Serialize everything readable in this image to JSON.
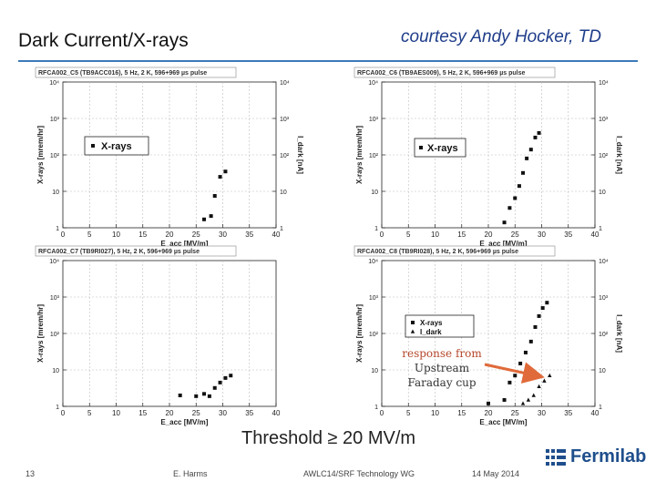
{
  "slide": {
    "title": "Dark Current/X-rays",
    "credit": "courtesy Andy Hocker, TD",
    "threshold": "Threshold ≥ 20 MV/m",
    "callout": [
      "response from",
      "Upstream",
      "Faraday cup"
    ],
    "footer": {
      "page": "13",
      "author": "E. Harms",
      "event": "AWLC14/SRF Technology WG",
      "date": "14 May 2014"
    },
    "logo": "Fermilab"
  },
  "colors": {
    "accent_rule": "#3d7ab8",
    "callout_text": "#b5472a",
    "arrow": "#e06a3a",
    "logo": "#1f4e8c"
  },
  "chart_data": [
    {
      "type": "scatter",
      "title": "RFCA002_C5 (TB9ACC016), 5 Hz, 2 K, 596+969 µs pulse",
      "xlabel": "E_acc [MV/m]",
      "ylabel": "X-rays [mrem/hr]",
      "y2label": "I_dark [nA]",
      "xlim": [
        0,
        40
      ],
      "xticks": [
        "0",
        "5",
        "10",
        "15",
        "20",
        "25",
        "30",
        "35",
        "40"
      ],
      "ylim": [
        1,
        10000
      ],
      "yscale": "log",
      "yticks": [
        "1",
        "10",
        "10²",
        "10³",
        "10⁴"
      ],
      "y2ticks": [
        "1",
        "10",
        "10²",
        "10³",
        "10⁴"
      ],
      "legend": "center-left",
      "series": [
        {
          "name": "X-rays",
          "marker": "square",
          "x": [
            26.5,
            27.8,
            28.5,
            29.5,
            30.5
          ],
          "y": [
            1.7,
            2.1,
            7.5,
            25,
            35
          ]
        }
      ]
    },
    {
      "type": "scatter",
      "title": "RFCA002_C6 (TB9AES009), 5 Hz, 2 K, 596+969 µs pulse",
      "xlabel": "E_acc [MV/m]",
      "ylabel": "X-rays [mrem/hr]",
      "y2label": "I_dark [nA]",
      "xlim": [
        0,
        40
      ],
      "xticks": [
        "0",
        "5",
        "10",
        "15",
        "20",
        "25",
        "30",
        "35",
        "40"
      ],
      "ylim": [
        1,
        10000
      ],
      "yscale": "log",
      "yticks": [
        "1",
        "10",
        "10²",
        "10³",
        "10⁴"
      ],
      "y2ticks": [
        "1",
        "10",
        "10²",
        "10³",
        "10⁴"
      ],
      "legend": "top-center",
      "series": [
        {
          "name": "X-rays",
          "marker": "square",
          "x": [
            23,
            24,
            25,
            25.8,
            26.5,
            27.2,
            28,
            28.8,
            29.5
          ],
          "y": [
            1.4,
            3.5,
            6.5,
            14,
            32,
            80,
            140,
            300,
            400
          ]
        }
      ]
    },
    {
      "type": "scatter",
      "title": "RFCA002_C7 (TB9RI027), 5 Hz, 2 K, 596+969 µs pulse",
      "xlabel": "E_acc [MV/m]",
      "ylabel": "X-rays [mrem/hr]",
      "xlim": [
        0,
        40
      ],
      "xticks": [
        "0",
        "5",
        "10",
        "15",
        "20",
        "25",
        "30",
        "35",
        "40"
      ],
      "ylim": [
        1,
        10000
      ],
      "yscale": "log",
      "yticks": [
        "1",
        "10",
        "10²",
        "10³",
        "10⁴"
      ],
      "series": [
        {
          "name": "X-rays",
          "marker": "square",
          "x": [
            22,
            25,
            26.5,
            27.5,
            28.5,
            29.5,
            30.5,
            31.5
          ],
          "y": [
            2,
            1.9,
            2.2,
            1.9,
            3.2,
            4.5,
            6,
            7
          ]
        }
      ]
    },
    {
      "type": "scatter",
      "title": "RFCA002_C8 (TB9RI028), 5 Hz, 2 K, 596+969 µs pulse",
      "xlabel": "E_acc [MV/m]",
      "ylabel": "X-rays [mrem/hr]",
      "y2label": "I_dark [nA]",
      "xlim": [
        0,
        40
      ],
      "xticks": [
        "0",
        "5",
        "10",
        "15",
        "20",
        "25",
        "30",
        "35",
        "40"
      ],
      "ylim": [
        1,
        10000
      ],
      "yscale": "log",
      "yticks": [
        "1",
        "10",
        "10²",
        "10³",
        "10⁴"
      ],
      "y2ticks": [
        "1",
        "10",
        "10²",
        "10³",
        "10⁴"
      ],
      "legend": "center-left",
      "series": [
        {
          "name": "X-rays",
          "marker": "square",
          "x": [
            20,
            23,
            24,
            25,
            26,
            27,
            28,
            28.8,
            29.5,
            30.2,
            31
          ],
          "y": [
            1.2,
            1.5,
            4.5,
            7,
            15,
            30,
            60,
            150,
            300,
            500,
            700
          ]
        },
        {
          "name": "I_dark",
          "marker": "triangle",
          "x": [
            26.5,
            27.5,
            28.5,
            29.5,
            30.5,
            31.5
          ],
          "y": [
            1.2,
            1.5,
            2,
            3.5,
            5,
            7
          ]
        }
      ]
    }
  ]
}
